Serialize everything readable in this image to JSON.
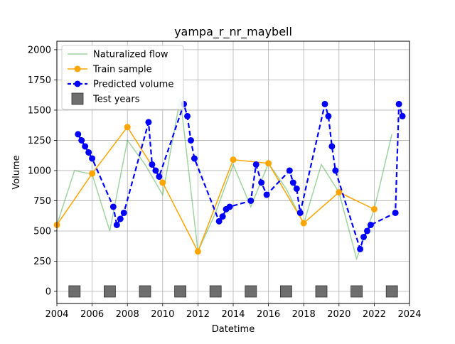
{
  "chart_data": {
    "type": "line",
    "title": "yampa_r_nr_maybell",
    "xlabel": "Datetime",
    "ylabel": "Volume",
    "xlim": [
      2004,
      2024
    ],
    "ylim": [
      -100,
      2070
    ],
    "xticks": [
      2004,
      2006,
      2008,
      2010,
      2012,
      2014,
      2016,
      2018,
      2020,
      2022,
      2024
    ],
    "xtick_labels": [
      "2004",
      "2006",
      "2008",
      "2010",
      "2012",
      "2014",
      "2016",
      "2018",
      "2020",
      "2022",
      "2024"
    ],
    "yticks": [
      0,
      250,
      500,
      750,
      1000,
      1250,
      1500,
      1750,
      2000
    ],
    "ytick_labels": [
      "0",
      "250",
      "500",
      "750",
      "1000",
      "1250",
      "1500",
      "1750",
      "2000"
    ],
    "grid": true,
    "legend": {
      "placement": "top-left",
      "entries": [
        "Naturalized flow",
        "Train sample",
        "Predicted volume",
        "Test years"
      ]
    },
    "colors": {
      "naturalized": "#2ca02c",
      "train": "#ffa500",
      "predicted": "#0000ff",
      "test": "#555555"
    },
    "series": [
      {
        "name": "Naturalized flow",
        "style": "line",
        "x": [
          2004.0,
          2005.0,
          2006.0,
          2007.0,
          2008.0,
          2009.0,
          2010.0,
          2011.0,
          2012.0,
          2013.0,
          2014.0,
          2015.0,
          2016.0,
          2017.0,
          2018.0,
          2019.0,
          2020.0,
          2021.0,
          2022.0,
          2023.0
        ],
        "y": [
          550,
          1000,
          970,
          500,
          1250,
          1050,
          800,
          1600,
          330,
          650,
          1050,
          700,
          1060,
          850,
          560,
          1050,
          820,
          270,
          680,
          1300
        ]
      },
      {
        "name": "Train sample",
        "style": "line-marker",
        "x": [
          2004.0,
          2006.0,
          2008.0,
          2010.0,
          2012.0,
          2014.0,
          2016.0,
          2018.0,
          2020.0,
          2022.0
        ],
        "y": [
          550,
          975,
          1360,
          900,
          330,
          1090,
          1060,
          565,
          820,
          680
        ]
      },
      {
        "name": "Predicted volume",
        "style": "dashed-marker",
        "x": [
          2005.2,
          2005.4,
          2005.6,
          2005.8,
          2006.0,
          2007.2,
          2007.4,
          2007.6,
          2007.8,
          2009.2,
          2009.4,
          2009.6,
          2009.8,
          2011.2,
          2011.4,
          2011.6,
          2011.8,
          2013.2,
          2013.4,
          2013.6,
          2013.8,
          2015.0,
          2015.3,
          2015.6,
          2015.9,
          2017.2,
          2017.4,
          2017.6,
          2017.8,
          2019.2,
          2019.4,
          2019.6,
          2019.8,
          2021.2,
          2021.4,
          2021.6,
          2021.8,
          2023.2,
          2023.4,
          2023.6
        ],
        "y": [
          1300,
          1250,
          1200,
          1150,
          1100,
          700,
          550,
          600,
          650,
          1400,
          1050,
          1000,
          950,
          1550,
          1450,
          1250,
          1100,
          580,
          620,
          680,
          700,
          750,
          1050,
          900,
          800,
          1000,
          900,
          850,
          650,
          1550,
          1450,
          1200,
          1000,
          350,
          450,
          500,
          550,
          650,
          1550,
          1450
        ]
      }
    ],
    "test_years": [
      2005,
      2007,
      2009,
      2011,
      2013,
      2015,
      2017,
      2019,
      2021,
      2023
    ]
  }
}
